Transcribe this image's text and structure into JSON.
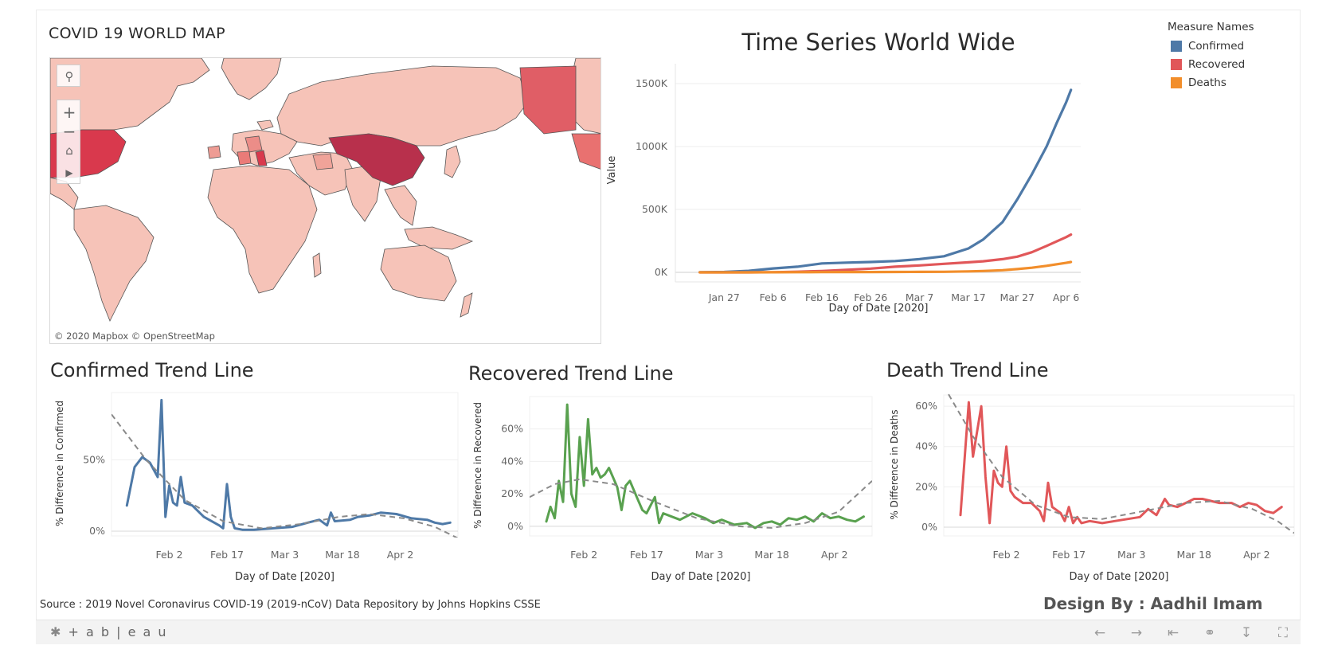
{
  "map": {
    "title": "COVID 19 WORLD MAP",
    "attribution": "© 2020 Mapbox  © OpenStreetMap",
    "controls": {
      "search": "search-icon",
      "zoom_in": "+",
      "zoom_out": "−",
      "home": "home-icon",
      "play": "play-icon"
    }
  },
  "legend": {
    "title": "Measure Names",
    "items": [
      {
        "label": "Confirmed",
        "color": "#4e79a7"
      },
      {
        "label": "Recovered",
        "color": "#e15759"
      },
      {
        "label": "Deaths",
        "color": "#f28e2b"
      }
    ]
  },
  "footer_text": {
    "source": "Source : 2019 Novel Coronavirus COVID-19 (2019-nCoV) Data Repository by Johns Hopkins CSSE",
    "design_by": "Design By : Aadhil Imam",
    "logo": "+ a b | e a u"
  },
  "chart_data": [
    {
      "type": "line",
      "title": "Time Series World Wide",
      "xlabel": "Day of Date [2020]",
      "ylabel": "Value",
      "x_ticks": [
        "Jan 27",
        "Feb 6",
        "Feb 16",
        "Feb 26",
        "Mar 7",
        "Mar 17",
        "Mar 27",
        "Apr 6"
      ],
      "y_ticks": [
        "0K",
        "500K",
        "1000K",
        "1500K"
      ],
      "ylim": [
        0,
        1500000
      ],
      "x": [
        "Jan 22",
        "Jan 27",
        "Feb 1",
        "Feb 6",
        "Feb 11",
        "Feb 16",
        "Feb 21",
        "Feb 26",
        "Mar 2",
        "Mar 7",
        "Mar 12",
        "Mar 17",
        "Mar 20",
        "Mar 24",
        "Mar 27",
        "Mar 30",
        "Apr 2",
        "Apr 4",
        "Apr 6",
        "Apr 7"
      ],
      "series": [
        {
          "name": "Confirmed",
          "color": "#4e79a7",
          "values": [
            555,
            2900,
            12000,
            31000,
            45000,
            71000,
            77000,
            82000,
            90000,
            105000,
            128000,
            190000,
            260000,
            400000,
            580000,
            780000,
            1000000,
            1180000,
            1350000,
            1450000
          ]
        },
        {
          "name": "Recovered",
          "color": "#e15759",
          "values": [
            30,
            60,
            300,
            1100,
            5000,
            11000,
            20000,
            30000,
            45000,
            55000,
            68000,
            80000,
            88000,
            105000,
            125000,
            160000,
            210000,
            245000,
            280000,
            300000
          ]
        },
        {
          "name": "Deaths",
          "color": "#f28e2b",
          "values": [
            17,
            80,
            260,
            630,
            1100,
            1700,
            2300,
            2800,
            3100,
            3500,
            4700,
            7500,
            11000,
            17000,
            26000,
            37000,
            52000,
            64000,
            75000,
            82000
          ]
        }
      ],
      "grid": true,
      "legend": "top-right"
    },
    {
      "type": "line",
      "title": "Confirmed Trend Line",
      "xlabel": "Day of Date [2020]",
      "ylabel": "% Difference in Confirmed",
      "x_ticks": [
        "Feb 2",
        "Feb 17",
        "Mar 3",
        "Mar 18",
        "Apr 2"
      ],
      "y_ticks": [
        "0%",
        "50%"
      ],
      "ylim": [
        0,
        95
      ],
      "color": "#4e79a7",
      "series_values": [
        [
          0,
          18
        ],
        [
          2,
          45
        ],
        [
          4,
          52
        ],
        [
          6,
          48
        ],
        [
          8,
          38
        ],
        [
          9,
          92
        ],
        [
          10,
          10
        ],
        [
          11,
          32
        ],
        [
          12,
          20
        ],
        [
          13,
          18
        ],
        [
          14,
          38
        ],
        [
          15,
          20
        ],
        [
          17,
          18
        ],
        [
          20,
          10
        ],
        [
          24,
          4
        ],
        [
          25,
          2
        ],
        [
          26,
          33
        ],
        [
          27,
          10
        ],
        [
          28,
          2
        ],
        [
          30,
          1
        ],
        [
          33,
          1
        ],
        [
          38,
          2
        ],
        [
          43,
          3
        ],
        [
          47,
          6
        ],
        [
          50,
          8
        ],
        [
          52,
          4
        ],
        [
          53,
          13
        ],
        [
          54,
          7
        ],
        [
          58,
          8
        ],
        [
          60,
          10
        ],
        [
          63,
          11
        ],
        [
          66,
          13
        ],
        [
          70,
          12
        ],
        [
          74,
          9
        ],
        [
          78,
          8
        ],
        [
          80,
          6
        ],
        [
          82,
          5
        ],
        [
          84,
          6
        ]
      ],
      "trend": [
        [
          -4,
          82
        ],
        [
          5,
          50
        ],
        [
          15,
          22
        ],
        [
          25,
          7
        ],
        [
          35,
          2
        ],
        [
          45,
          5
        ],
        [
          55,
          10
        ],
        [
          63,
          12
        ],
        [
          72,
          9
        ],
        [
          80,
          3
        ],
        [
          86,
          -5
        ]
      ],
      "x_range": [
        -4,
        86
      ],
      "tick_positions": [
        11,
        26,
        41,
        56,
        71
      ]
    },
    {
      "type": "line",
      "title": "Recovered Trend Line",
      "xlabel": "Day of Date [2020]",
      "ylabel": "% Difference in Recovered",
      "x_ticks": [
        "Feb 2",
        "Feb 17",
        "Mar 3",
        "Mar 18",
        "Apr 2"
      ],
      "y_ticks": [
        "0%",
        "20%",
        "40%",
        "60%"
      ],
      "ylim": [
        -3,
        78
      ],
      "color": "#59a14f",
      "series_values": [
        [
          0,
          3
        ],
        [
          1,
          12
        ],
        [
          2,
          5
        ],
        [
          3,
          28
        ],
        [
          4,
          15
        ],
        [
          5,
          75
        ],
        [
          6,
          20
        ],
        [
          7,
          12
        ],
        [
          8,
          55
        ],
        [
          9,
          25
        ],
        [
          10,
          66
        ],
        [
          11,
          32
        ],
        [
          12,
          36
        ],
        [
          13,
          30
        ],
        [
          14,
          32
        ],
        [
          15,
          36
        ],
        [
          16,
          30
        ],
        [
          17,
          24
        ],
        [
          18,
          10
        ],
        [
          19,
          25
        ],
        [
          20,
          28
        ],
        [
          22,
          16
        ],
        [
          23,
          10
        ],
        [
          24,
          8
        ],
        [
          26,
          18
        ],
        [
          27,
          2
        ],
        [
          28,
          8
        ],
        [
          30,
          6
        ],
        [
          32,
          4
        ],
        [
          35,
          8
        ],
        [
          38,
          5
        ],
        [
          40,
          2
        ],
        [
          42,
          4
        ],
        [
          45,
          1
        ],
        [
          48,
          2
        ],
        [
          50,
          -1
        ],
        [
          52,
          2
        ],
        [
          54,
          3
        ],
        [
          56,
          1
        ],
        [
          58,
          5
        ],
        [
          60,
          4
        ],
        [
          62,
          6
        ],
        [
          64,
          3
        ],
        [
          66,
          8
        ],
        [
          68,
          5
        ],
        [
          70,
          6
        ],
        [
          72,
          4
        ],
        [
          74,
          3
        ],
        [
          76,
          6
        ]
      ],
      "trend": [
        [
          -4,
          18
        ],
        [
          2,
          26
        ],
        [
          8,
          29
        ],
        [
          16,
          26
        ],
        [
          26,
          15
        ],
        [
          36,
          5
        ],
        [
          46,
          0
        ],
        [
          54,
          -1
        ],
        [
          62,
          2
        ],
        [
          70,
          9
        ],
        [
          78,
          28
        ]
      ],
      "x_range": [
        -4,
        78
      ],
      "tick_positions": [
        9,
        24,
        39,
        54,
        69
      ]
    },
    {
      "type": "line",
      "title": "Death Trend Line",
      "xlabel": "Day of Date [2020]",
      "ylabel": "% Difference in Deaths",
      "x_ticks": [
        "Feb 2",
        "Feb 17",
        "Mar 3",
        "Mar 18",
        "Apr 2"
      ],
      "y_ticks": [
        "0%",
        "20%",
        "40%",
        "60%"
      ],
      "ylim": [
        -2,
        64
      ],
      "color": "#e15759",
      "series_values": [
        [
          0,
          6
        ],
        [
          2,
          62
        ],
        [
          3,
          35
        ],
        [
          5,
          60
        ],
        [
          6,
          25
        ],
        [
          7,
          2
        ],
        [
          8,
          28
        ],
        [
          9,
          22
        ],
        [
          10,
          20
        ],
        [
          11,
          40
        ],
        [
          12,
          18
        ],
        [
          13,
          15
        ],
        [
          15,
          12
        ],
        [
          17,
          12
        ],
        [
          19,
          8
        ],
        [
          20,
          3
        ],
        [
          21,
          22
        ],
        [
          22,
          10
        ],
        [
          24,
          7
        ],
        [
          25,
          3
        ],
        [
          26,
          10
        ],
        [
          27,
          2
        ],
        [
          28,
          5
        ],
        [
          29,
          2
        ],
        [
          31,
          3
        ],
        [
          34,
          2
        ],
        [
          37,
          3
        ],
        [
          40,
          4
        ],
        [
          43,
          5
        ],
        [
          45,
          9
        ],
        [
          47,
          6
        ],
        [
          49,
          14
        ],
        [
          50,
          11
        ],
        [
          52,
          10
        ],
        [
          54,
          12
        ],
        [
          56,
          14
        ],
        [
          58,
          14
        ],
        [
          60,
          13
        ],
        [
          62,
          12
        ],
        [
          65,
          12
        ],
        [
          67,
          10
        ],
        [
          69,
          12
        ],
        [
          71,
          11
        ],
        [
          73,
          8
        ],
        [
          75,
          7
        ],
        [
          77,
          10
        ]
      ],
      "trend": [
        [
          -4,
          70
        ],
        [
          3,
          45
        ],
        [
          10,
          25
        ],
        [
          18,
          11
        ],
        [
          26,
          5
        ],
        [
          34,
          4
        ],
        [
          44,
          8
        ],
        [
          54,
          12
        ],
        [
          62,
          13
        ],
        [
          70,
          9
        ],
        [
          76,
          3
        ],
        [
          80,
          -3
        ]
      ],
      "x_range": [
        -4,
        80
      ],
      "tick_positions": [
        11,
        26,
        41,
        56,
        71
      ]
    }
  ]
}
